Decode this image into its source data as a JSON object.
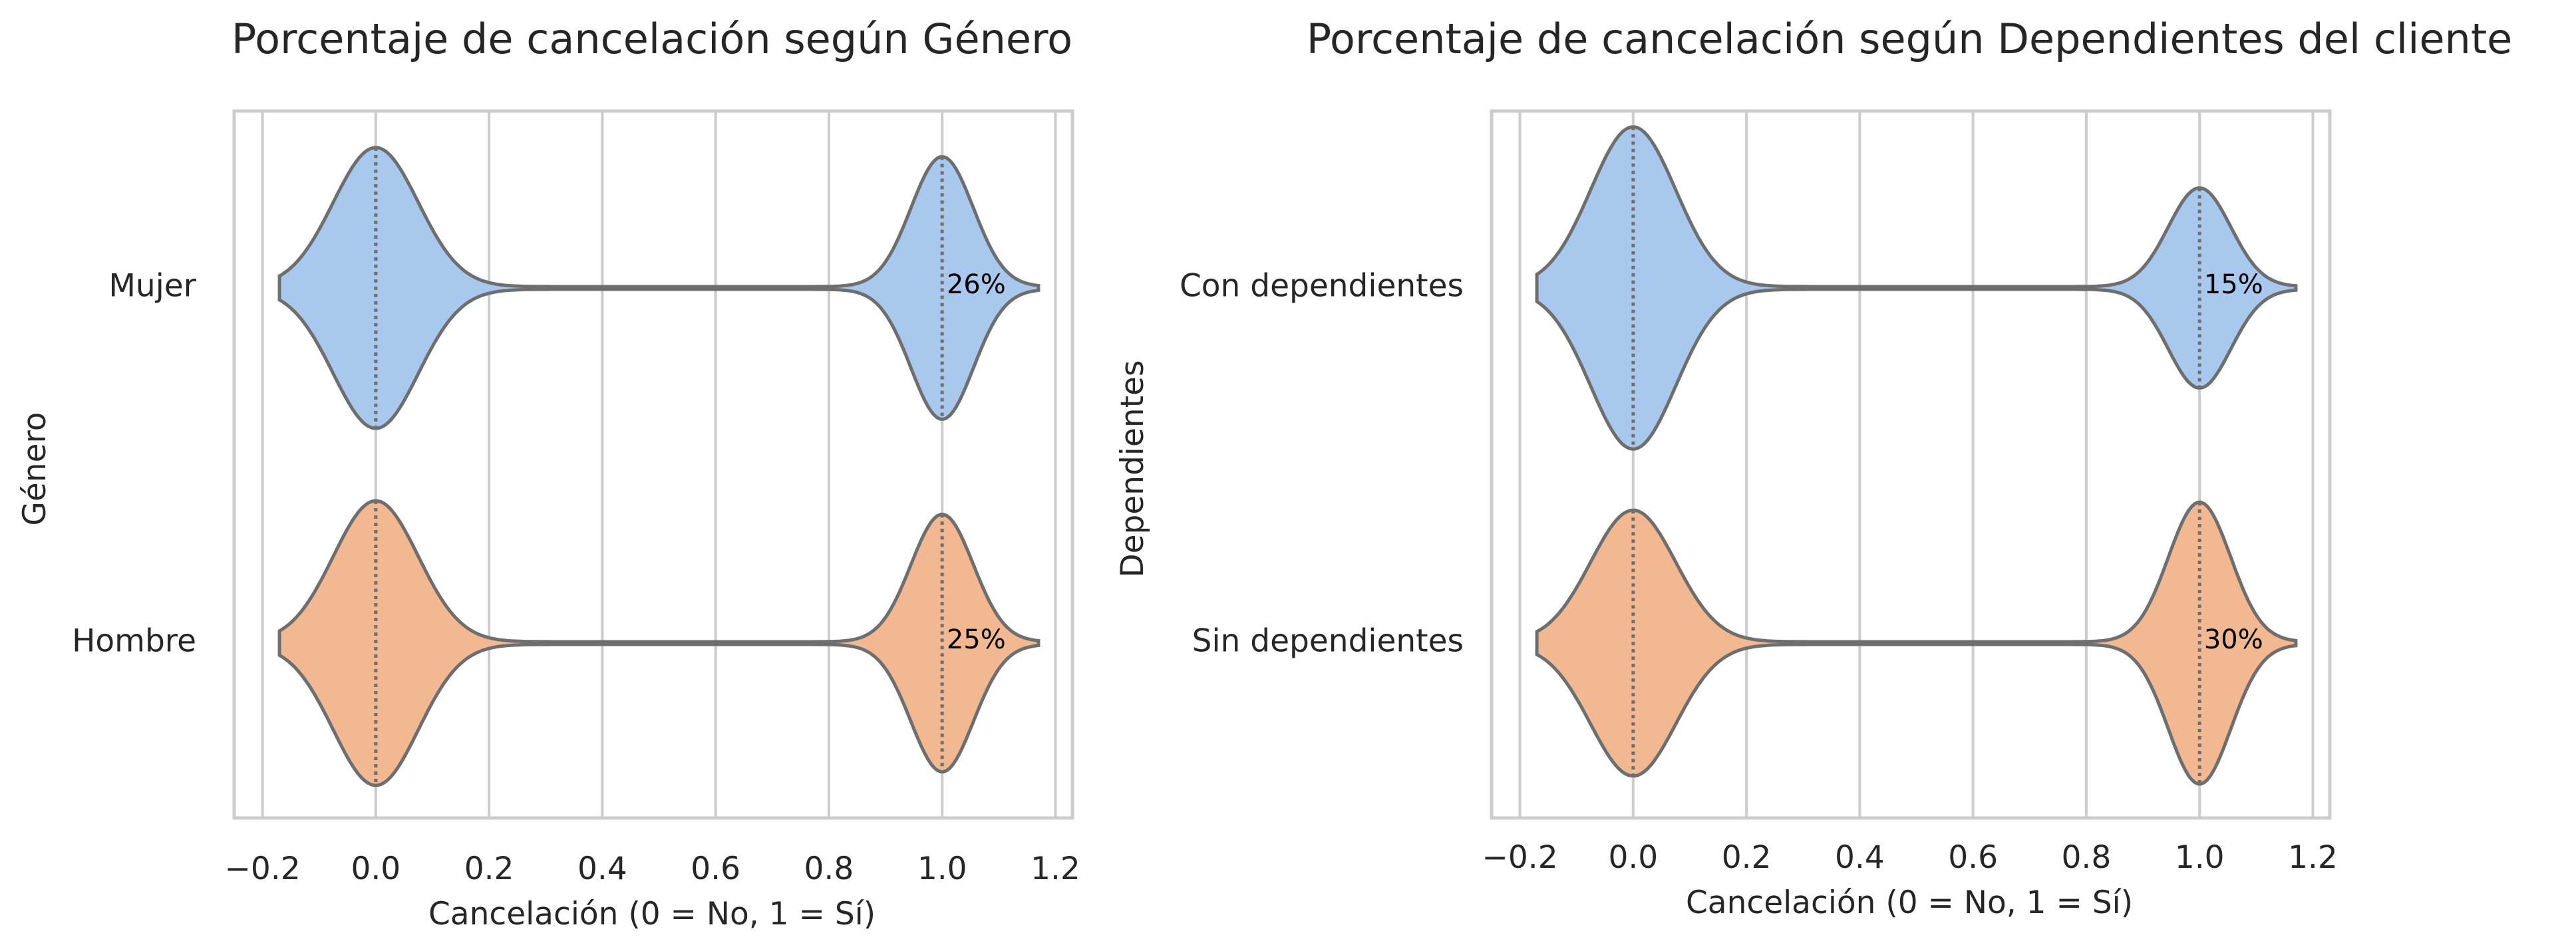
{
  "colors": {
    "mujer_fill": "#a9c8ee",
    "hombre_fill": "#f1b891",
    "edge": "#6e6e6e",
    "grid": "#cccccc"
  },
  "chart_data": [
    {
      "type": "violin",
      "title": "Porcentaje de cancelación según Género",
      "xlabel": "Cancelación (0 = No, 1 = Sí)",
      "ylabel": "Género",
      "xlim": [
        -0.25,
        1.23
      ],
      "xticks": [
        "−0.2",
        "0.0",
        "0.2",
        "0.4",
        "0.6",
        "0.8",
        "1.0",
        "1.2"
      ],
      "xtick_values": [
        -0.2,
        0.0,
        0.2,
        0.4,
        0.6,
        0.8,
        1.0,
        1.2
      ],
      "grid": true,
      "series": [
        {
          "name": "Mujer",
          "churn_rate": 0.26,
          "annotation": "26%",
          "color": "#a9c8ee"
        },
        {
          "name": "Hombre",
          "churn_rate": 0.25,
          "annotation": "25%",
          "color": "#f1b891"
        }
      ]
    },
    {
      "type": "violin",
      "title": "Porcentaje de cancelación según Dependientes del cliente",
      "xlabel": "Cancelación (0 = No, 1 = Sí)",
      "ylabel": "Dependientes",
      "xlim": [
        -0.25,
        1.23
      ],
      "xticks": [
        "−0.2",
        "0.0",
        "0.2",
        "0.4",
        "0.6",
        "0.8",
        "1.0",
        "1.2"
      ],
      "xtick_values": [
        -0.2,
        0.0,
        0.2,
        0.4,
        0.6,
        0.8,
        1.0,
        1.2
      ],
      "grid": true,
      "series": [
        {
          "name": "Con dependientes",
          "churn_rate": 0.15,
          "annotation": "15%",
          "color": "#a9c8ee"
        },
        {
          "name": "Sin dependientes",
          "churn_rate": 0.3,
          "annotation": "30%",
          "color": "#f1b891"
        }
      ]
    }
  ]
}
